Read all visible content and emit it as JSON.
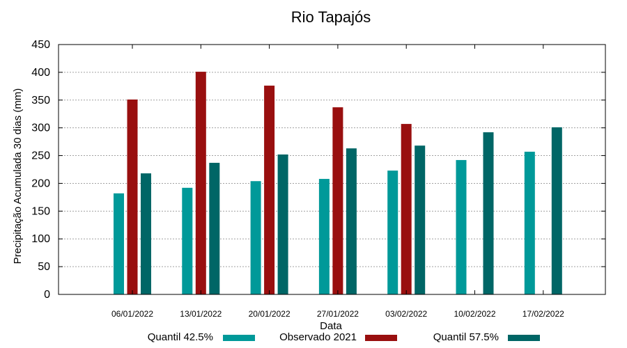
{
  "chart_data": {
    "type": "bar",
    "title": "Rio Tapajós",
    "xlabel": "Data",
    "ylabel": "Precipitação Acumulada 30 dias (mm)",
    "ylim": [
      0,
      450
    ],
    "yticks": [
      0,
      50,
      100,
      150,
      200,
      250,
      300,
      350,
      400,
      450
    ],
    "grid": true,
    "legend_position": "bottom",
    "categories": [
      "06/01/2022",
      "13/01/2022",
      "20/01/2022",
      "27/01/2022",
      "03/02/2022",
      "10/02/2022",
      "17/02/2022"
    ],
    "series": [
      {
        "name": "Quantil 42.5%",
        "color": "#009999",
        "values": [
          182,
          192,
          204,
          208,
          223,
          242,
          257
        ]
      },
      {
        "name": "Observado 2021",
        "color": "#990f0f",
        "values": [
          351,
          401,
          376,
          337,
          307,
          null,
          null
        ]
      },
      {
        "name": "Quantil 57.5%",
        "color": "#006666",
        "values": [
          218,
          237,
          252,
          263,
          268,
          292,
          301
        ]
      }
    ]
  }
}
